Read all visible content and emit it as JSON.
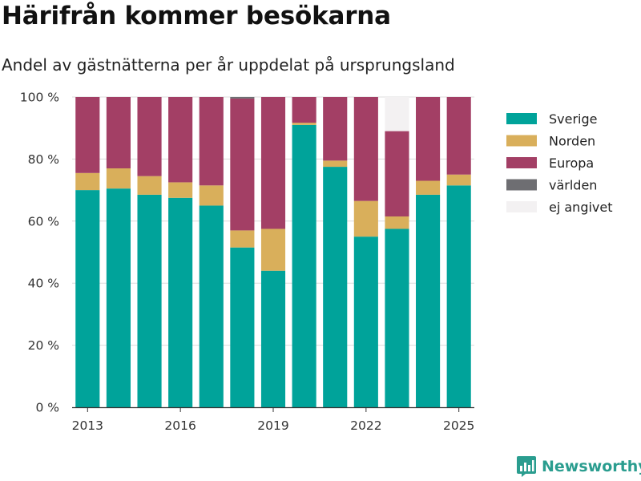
{
  "header": {
    "title": "Härifrån kommer besökarna",
    "subtitle": "Andel av gästnätterna per år uppdelat på ursprungsland"
  },
  "brand": {
    "name": "Newsworthy",
    "icon": "newsworthy-logo-icon",
    "color": "#2a9d8f"
  },
  "chart_data": {
    "type": "bar",
    "stacked": true,
    "categories": [
      "2013",
      "2014",
      "2015",
      "2016",
      "2017",
      "2018",
      "2019",
      "2020",
      "2021",
      "2022",
      "2023",
      "2024",
      "2025"
    ],
    "x_tick_labels": [
      "2013",
      "2016",
      "2019",
      "2022",
      "2025"
    ],
    "y_tick_labels": [
      "0 %",
      "20 %",
      "40 %",
      "60 %",
      "80 %",
      "100 %"
    ],
    "ylim": [
      0,
      100
    ],
    "y_ticks": [
      0,
      20,
      40,
      60,
      80,
      100
    ],
    "grid": true,
    "legend_position": "right",
    "series": [
      {
        "name": "Sverige",
        "color": "#00a39a",
        "values": [
          70,
          70.5,
          68.5,
          67.5,
          65,
          51.5,
          44,
          91,
          77.5,
          55,
          57.5,
          68.5,
          71.5
        ]
      },
      {
        "name": "Norden",
        "color": "#d9af5b",
        "values": [
          5.5,
          6.5,
          6,
          5,
          6.5,
          5.5,
          13.5,
          0.7,
          2,
          11.5,
          4,
          4.5,
          3.5
        ]
      },
      {
        "name": "Europa",
        "color": "#a33f65",
        "values": [
          24.5,
          23,
          25.5,
          27.5,
          28.5,
          42.5,
          42.5,
          8.3,
          20.5,
          33.5,
          27.5,
          27,
          25
        ]
      },
      {
        "name": "världen",
        "color": "#6e6e72",
        "values": [
          0,
          0,
          0,
          0,
          0,
          0.5,
          0,
          0,
          0,
          0,
          0,
          0,
          0
        ]
      },
      {
        "name": "ej angivet",
        "color": "#f3f1f2",
        "values": [
          0,
          0,
          0,
          0,
          0,
          0,
          0,
          0,
          0,
          0,
          11,
          0,
          0
        ]
      }
    ]
  }
}
